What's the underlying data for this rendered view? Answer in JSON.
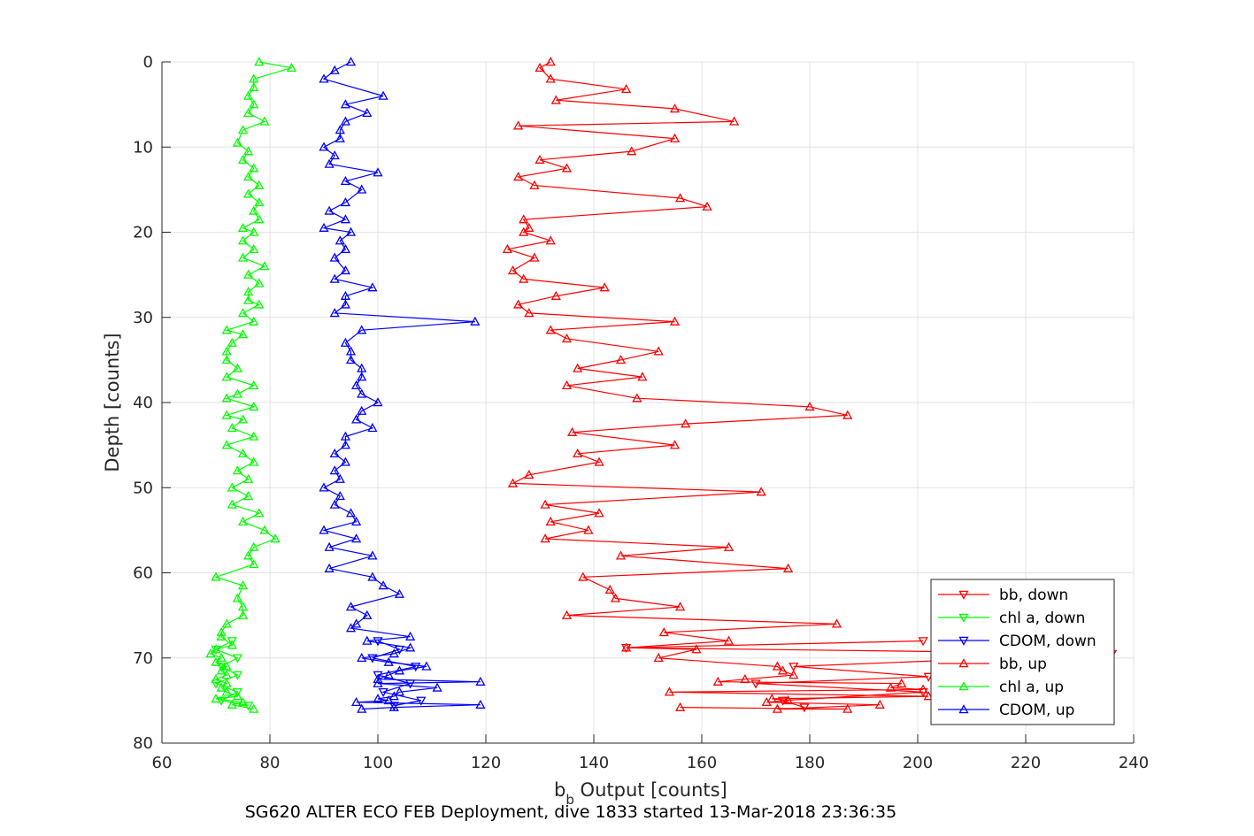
{
  "chart_data": {
    "type": "line",
    "title": "",
    "xlabel": "b",
    "xlabel_sub": "b",
    "xlabel_rest": " Output [counts]",
    "ylabel": "Depth [counts]",
    "caption": "SG620 ALTER ECO FEB Deployment, dive 1833 started 13-Mar-2018 23:36:35",
    "xlim": [
      60,
      240
    ],
    "ylim": [
      0,
      80
    ],
    "y_reversed": true,
    "xticks": [
      60,
      80,
      100,
      120,
      140,
      160,
      180,
      200,
      220,
      240
    ],
    "yticks": [
      0,
      10,
      20,
      30,
      40,
      50,
      60,
      70,
      80
    ],
    "grid": true,
    "legend_position": "bottom-right",
    "series": [
      {
        "name": "bb, down",
        "color": "#ff0000",
        "marker": "triangle-down",
        "points": [
          [
            201,
            68
          ],
          [
            146,
            68.8
          ],
          [
            236,
            69.5
          ],
          [
            177,
            71
          ],
          [
            202,
            72.2
          ],
          [
            170,
            73
          ],
          [
            201,
            74
          ],
          [
            175,
            75
          ],
          [
            179,
            75.8
          ]
        ]
      },
      {
        "name": "chl a, down",
        "color": "#00ff00",
        "marker": "triangle-down",
        "points": [
          [
            73,
            68
          ],
          [
            70,
            69
          ],
          [
            74,
            70
          ],
          [
            71,
            71
          ],
          [
            74,
            72
          ],
          [
            70,
            73
          ],
          [
            74,
            74
          ],
          [
            71,
            75
          ],
          [
            76,
            75.6
          ]
        ]
      },
      {
        "name": "CDOM, down",
        "color": "#0000ff",
        "marker": "triangle-down",
        "points": [
          [
            100,
            68
          ],
          [
            104,
            69
          ],
          [
            99,
            70
          ],
          [
            107,
            71
          ],
          [
            100,
            72
          ],
          [
            106,
            73
          ],
          [
            101,
            74
          ],
          [
            108,
            75
          ],
          [
            103,
            75.6
          ]
        ]
      },
      {
        "name": "bb, up",
        "color": "#ff0000",
        "marker": "triangle-up",
        "points": [
          [
            156,
            75.8
          ],
          [
            187,
            76
          ],
          [
            174,
            76
          ],
          [
            193,
            75.5
          ],
          [
            172,
            75.2
          ],
          [
            176,
            75
          ],
          [
            173,
            74.8
          ],
          [
            202,
            74.5
          ],
          [
            154,
            74
          ],
          [
            201,
            73.7
          ],
          [
            195,
            73.5
          ],
          [
            197,
            73
          ],
          [
            163,
            72.8
          ],
          [
            168,
            72.5
          ],
          [
            177,
            72
          ],
          [
            175,
            71.5
          ],
          [
            174,
            71
          ],
          [
            152,
            70
          ],
          [
            159,
            69
          ],
          [
            146,
            68.8
          ],
          [
            165,
            68
          ],
          [
            153,
            67
          ],
          [
            185,
            66
          ],
          [
            135,
            65
          ],
          [
            156,
            64
          ],
          [
            144,
            63
          ],
          [
            143,
            62
          ],
          [
            138,
            60.5
          ],
          [
            176,
            59.5
          ],
          [
            145,
            58
          ],
          [
            165,
            57
          ],
          [
            131,
            56
          ],
          [
            139,
            55
          ],
          [
            132,
            54
          ],
          [
            141,
            53
          ],
          [
            131,
            52
          ],
          [
            171,
            50.5
          ],
          [
            125,
            49.5
          ],
          [
            128,
            48.5
          ],
          [
            141,
            47
          ],
          [
            137,
            46
          ],
          [
            155,
            45
          ],
          [
            136,
            43.5
          ],
          [
            157,
            42.5
          ],
          [
            187,
            41.5
          ],
          [
            180,
            40.5
          ],
          [
            148,
            39.5
          ],
          [
            135,
            38
          ],
          [
            149,
            37
          ],
          [
            137,
            36
          ],
          [
            145,
            35
          ],
          [
            152,
            34
          ],
          [
            135,
            32.5
          ],
          [
            132,
            31.5
          ],
          [
            155,
            30.5
          ],
          [
            128,
            29.5
          ],
          [
            126,
            28.5
          ],
          [
            133,
            27.5
          ],
          [
            142,
            26.5
          ],
          [
            127,
            25.5
          ],
          [
            125,
            24.5
          ],
          [
            129,
            23
          ],
          [
            124,
            22
          ],
          [
            132,
            21
          ],
          [
            127,
            20
          ],
          [
            128,
            19.5
          ],
          [
            127,
            18.5
          ],
          [
            161,
            17
          ],
          [
            156,
            16
          ],
          [
            129,
            14.5
          ],
          [
            126,
            13.5
          ],
          [
            135,
            12.5
          ],
          [
            130,
            11.5
          ],
          [
            147,
            10.5
          ],
          [
            155,
            9
          ],
          [
            126,
            7.5
          ],
          [
            166,
            7
          ],
          [
            155,
            5.5
          ],
          [
            133,
            4.5
          ],
          [
            146,
            3.2
          ],
          [
            132,
            2
          ],
          [
            130,
            0.7
          ],
          [
            132,
            0
          ]
        ]
      },
      {
        "name": "chl a, up",
        "color": "#00ff00",
        "marker": "triangle-up",
        "points": [
          [
            77,
            76
          ],
          [
            73,
            75.5
          ],
          [
            75,
            75.2
          ],
          [
            70,
            74.8
          ],
          [
            74,
            74.5
          ],
          [
            72,
            74
          ],
          [
            71,
            73.5
          ],
          [
            72,
            73
          ],
          [
            70,
            72.5
          ],
          [
            72,
            72
          ],
          [
            71,
            71.5
          ],
          [
            72,
            71
          ],
          [
            70,
            70.5
          ],
          [
            71,
            70
          ],
          [
            69,
            69.5
          ],
          [
            70,
            69
          ],
          [
            73,
            68.5
          ],
          [
            71,
            67.5
          ],
          [
            71,
            67
          ],
          [
            72,
            66
          ],
          [
            75,
            65
          ],
          [
            75,
            64
          ],
          [
            74,
            63
          ],
          [
            75,
            61.5
          ],
          [
            70,
            60.5
          ],
          [
            77,
            59
          ],
          [
            76,
            58
          ],
          [
            77,
            57
          ],
          [
            81,
            56
          ],
          [
            79,
            55
          ],
          [
            75,
            54
          ],
          [
            78,
            53
          ],
          [
            73,
            52
          ],
          [
            76,
            51
          ],
          [
            73,
            50
          ],
          [
            76,
            49
          ],
          [
            74,
            48
          ],
          [
            77,
            47
          ],
          [
            75,
            46
          ],
          [
            72,
            45
          ],
          [
            77,
            44
          ],
          [
            73,
            43
          ],
          [
            75,
            42
          ],
          [
            72,
            41.5
          ],
          [
            77,
            40.5
          ],
          [
            72,
            39.5
          ],
          [
            74,
            39
          ],
          [
            77,
            38
          ],
          [
            72,
            37
          ],
          [
            74,
            36
          ],
          [
            72,
            35
          ],
          [
            72,
            34
          ],
          [
            73,
            33
          ],
          [
            75,
            32
          ],
          [
            72,
            31.5
          ],
          [
            77,
            30.5
          ],
          [
            75,
            29.5
          ],
          [
            78,
            28.5
          ],
          [
            76,
            28
          ],
          [
            76,
            27
          ],
          [
            78,
            26
          ],
          [
            76,
            25
          ],
          [
            79,
            24
          ],
          [
            75,
            23
          ],
          [
            77,
            22
          ],
          [
            75,
            21
          ],
          [
            77,
            20
          ],
          [
            75,
            19.5
          ],
          [
            78,
            18.5
          ],
          [
            77,
            17.5
          ],
          [
            78,
            16.5
          ],
          [
            76,
            15.5
          ],
          [
            78,
            14.5
          ],
          [
            76,
            13.5
          ],
          [
            77,
            12.5
          ],
          [
            75,
            11.5
          ],
          [
            76,
            10.5
          ],
          [
            74,
            9.5
          ],
          [
            75,
            8
          ],
          [
            79,
            7
          ],
          [
            76,
            6
          ],
          [
            77,
            5
          ],
          [
            76,
            4
          ],
          [
            77,
            3
          ],
          [
            77,
            2
          ],
          [
            84,
            0.7
          ],
          [
            78,
            0
          ]
        ]
      },
      {
        "name": "CDOM, up",
        "color": "#0000ff",
        "marker": "triangle-up",
        "points": [
          [
            97,
            76
          ],
          [
            103,
            75.8
          ],
          [
            119,
            75.5
          ],
          [
            96,
            75.2
          ],
          [
            102,
            75
          ],
          [
            100,
            74.8
          ],
          [
            103,
            74.5
          ],
          [
            104,
            74
          ],
          [
            111,
            73.5
          ],
          [
            100,
            73
          ],
          [
            119,
            72.8
          ],
          [
            100,
            72.5
          ],
          [
            102,
            72
          ],
          [
            104,
            71.5
          ],
          [
            109,
            71
          ],
          [
            102,
            70.5
          ],
          [
            97,
            70
          ],
          [
            103,
            69.5
          ],
          [
            106,
            68.8
          ],
          [
            98,
            68
          ],
          [
            106,
            67.5
          ],
          [
            95,
            66.5
          ],
          [
            96,
            66
          ],
          [
            98,
            65
          ],
          [
            95,
            64
          ],
          [
            104,
            62.5
          ],
          [
            101,
            61.5
          ],
          [
            99,
            60.5
          ],
          [
            91,
            59.5
          ],
          [
            99,
            58
          ],
          [
            91,
            57
          ],
          [
            96,
            56
          ],
          [
            90,
            55
          ],
          [
            96,
            54
          ],
          [
            95,
            53
          ],
          [
            92,
            52
          ],
          [
            93,
            51
          ],
          [
            90,
            50
          ],
          [
            93,
            49
          ],
          [
            92,
            48
          ],
          [
            94,
            47
          ],
          [
            92,
            46
          ],
          [
            94,
            45
          ],
          [
            94,
            44
          ],
          [
            99,
            43
          ],
          [
            96,
            42
          ],
          [
            97,
            41
          ],
          [
            100,
            40
          ],
          [
            97,
            39
          ],
          [
            96,
            38
          ],
          [
            97,
            37
          ],
          [
            97,
            36
          ],
          [
            95,
            35
          ],
          [
            95,
            34
          ],
          [
            94,
            33
          ],
          [
            97,
            31.5
          ],
          [
            118,
            30.5
          ],
          [
            92,
            29.5
          ],
          [
            94,
            28.5
          ],
          [
            94,
            27.5
          ],
          [
            99,
            26.5
          ],
          [
            92,
            25.5
          ],
          [
            94,
            24.5
          ],
          [
            92,
            23
          ],
          [
            94,
            22
          ],
          [
            93,
            21
          ],
          [
            95,
            20
          ],
          [
            90,
            19.5
          ],
          [
            94,
            18.5
          ],
          [
            91,
            17.5
          ],
          [
            94,
            16.5
          ],
          [
            97,
            15
          ],
          [
            94,
            14
          ],
          [
            100,
            13
          ],
          [
            91,
            12
          ],
          [
            92,
            11
          ],
          [
            90,
            10
          ],
          [
            93,
            9
          ],
          [
            93,
            8
          ],
          [
            94,
            7
          ],
          [
            98,
            6
          ],
          [
            94,
            5
          ],
          [
            101,
            4
          ],
          [
            90,
            2
          ],
          [
            92,
            1
          ],
          [
            95,
            0
          ]
        ]
      }
    ]
  }
}
